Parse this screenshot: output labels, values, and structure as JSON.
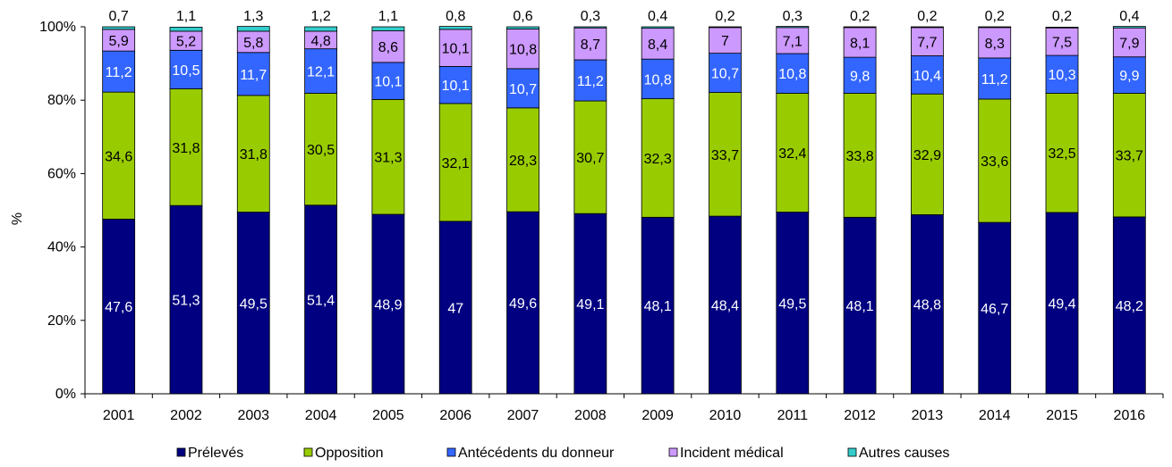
{
  "chart_data": {
    "type": "bar",
    "stacked": true,
    "normalized": true,
    "ylabel": "%",
    "xlabel": "",
    "ylim": [
      0,
      100
    ],
    "y_ticks": [
      "0%",
      "20%",
      "40%",
      "60%",
      "80%",
      "100%"
    ],
    "grid": false,
    "legend_position": "bottom",
    "categories": [
      "2001",
      "2002",
      "2003",
      "2004",
      "2005",
      "2006",
      "2007",
      "2008",
      "2009",
      "2010",
      "2011",
      "2012",
      "2013",
      "2014",
      "2015",
      "2016"
    ],
    "series": [
      {
        "name": "Prélevés",
        "color": "#000080",
        "label_color": "#ffffff",
        "values": [
          47.6,
          51.3,
          49.5,
          51.4,
          48.9,
          47,
          49.6,
          49.1,
          48.1,
          48.4,
          49.5,
          48.1,
          48.8,
          46.7,
          49.4,
          48.2
        ],
        "labels": [
          "47,6",
          "51,3",
          "49,5",
          "51,4",
          "48,9",
          "47",
          "49,6",
          "49,1",
          "48,1",
          "48,4",
          "49,5",
          "48,1",
          "48,8",
          "46,7",
          "49,4",
          "48,2"
        ]
      },
      {
        "name": "Opposition",
        "color": "#99cc00",
        "label_color": "#000000",
        "values": [
          34.6,
          31.8,
          31.8,
          30.5,
          31.3,
          32.1,
          28.3,
          30.7,
          32.3,
          33.7,
          32.4,
          33.8,
          32.9,
          33.6,
          32.5,
          33.7
        ],
        "labels": [
          "34,6",
          "31,8",
          "31,8",
          "30,5",
          "31,3",
          "32,1",
          "28,3",
          "30,7",
          "32,3",
          "33,7",
          "32,4",
          "33,8",
          "32,9",
          "33,6",
          "32,5",
          "33,7"
        ]
      },
      {
        "name": "Antécédents du donneur",
        "color": "#3366ff",
        "label_color": "#ffffff",
        "values": [
          11.2,
          10.5,
          11.7,
          12.1,
          10.1,
          10.1,
          10.7,
          11.2,
          10.8,
          10.7,
          10.8,
          9.8,
          10.4,
          11.2,
          10.3,
          9.9
        ],
        "labels": [
          "11,2",
          "10,5",
          "11,7",
          "12,1",
          "10,1",
          "10,1",
          "10,7",
          "11,2",
          "10,8",
          "10,7",
          "10,8",
          "9,8",
          "10,4",
          "11,2",
          "10,3",
          "9,9"
        ]
      },
      {
        "name": "Incident médical",
        "color": "#cc99ff",
        "label_color": "#000000",
        "values": [
          5.9,
          5.2,
          5.8,
          4.8,
          8.6,
          10.1,
          10.8,
          8.7,
          8.4,
          7,
          7.1,
          8.1,
          7.7,
          8.3,
          7.5,
          7.9
        ],
        "labels": [
          "5,9",
          "5,2",
          "5,8",
          "4,8",
          "8,6",
          "10,1",
          "10,8",
          "8,7",
          "8,4",
          "7",
          "7,1",
          "8,1",
          "7,7",
          "8,3",
          "7,5",
          "7,9"
        ]
      },
      {
        "name": "Autres causes",
        "color": "#33cccc",
        "label_color": "#000000",
        "values": [
          0.7,
          1.1,
          1.3,
          1.2,
          1.1,
          0.8,
          0.6,
          0.3,
          0.4,
          0.2,
          0.3,
          0.2,
          0.2,
          0.2,
          0.2,
          0.4
        ],
        "labels": [
          "0,7",
          "1,1",
          "1,3",
          "1,2",
          "1,1",
          "0,8",
          "0,6",
          "0,3",
          "0,4",
          "0,2",
          "0,3",
          "0,2",
          "0,2",
          "0,2",
          "0,2",
          "0,4"
        ],
        "label_above_bar": true
      }
    ]
  }
}
